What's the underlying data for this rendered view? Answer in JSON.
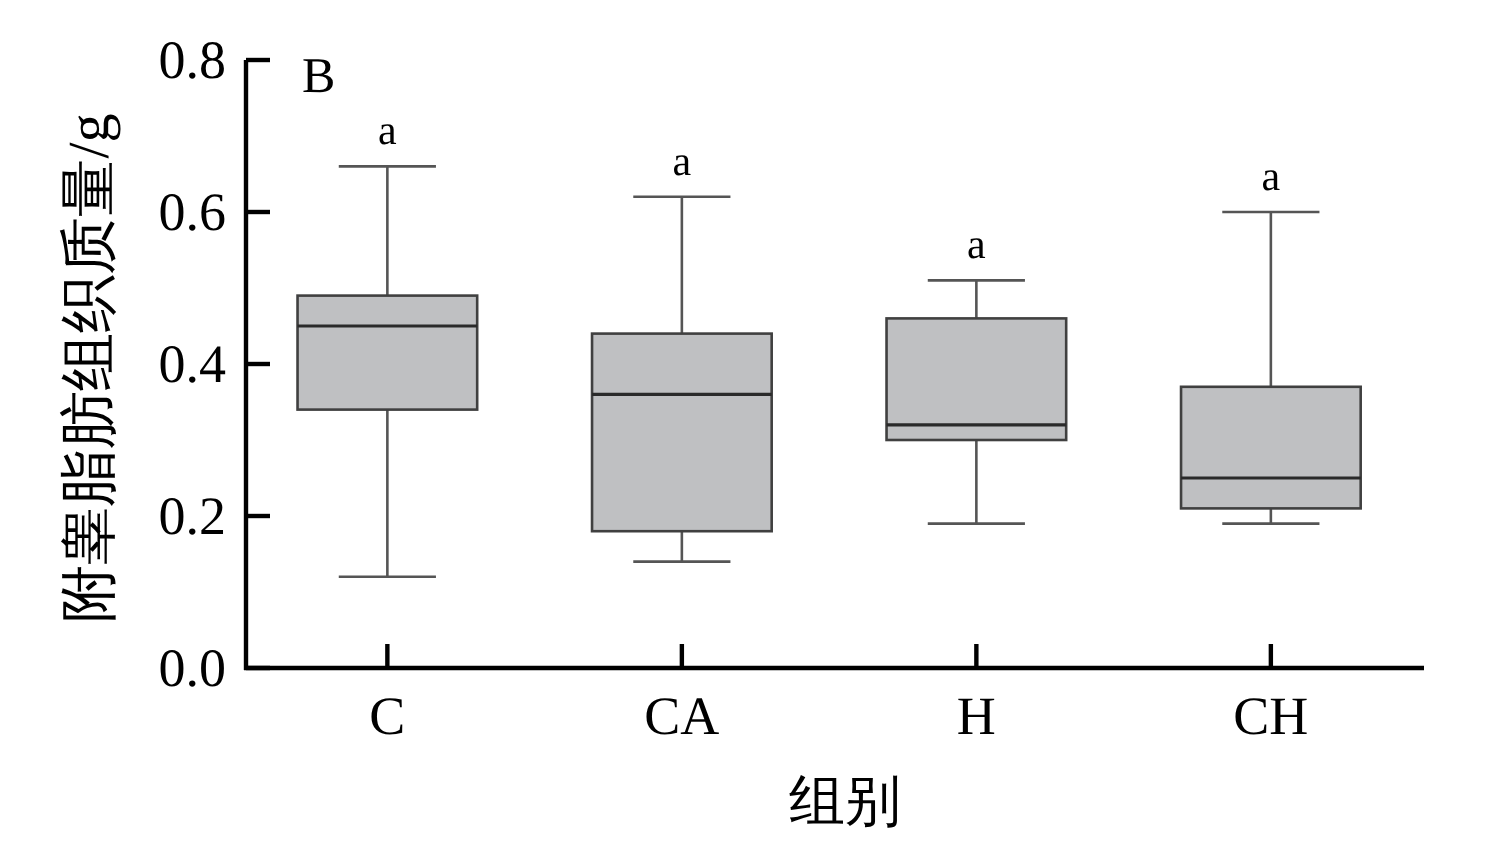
{
  "chart_data": {
    "type": "box",
    "xlabel": "组别",
    "ylabel": "附睾脂肪组织质量/g",
    "categories": [
      "C",
      "CA",
      "H",
      "CH"
    ],
    "series": [
      {
        "color": "#bfc0c2",
        "boxes": [
          {
            "low": 0.12,
            "q1": 0.34,
            "median": 0.45,
            "q3": 0.49,
            "high": 0.66
          },
          {
            "low": 0.14,
            "q1": 0.18,
            "median": 0.36,
            "q3": 0.44,
            "high": 0.62
          },
          {
            "low": 0.19,
            "q1": 0.3,
            "median": 0.32,
            "q3": 0.46,
            "high": 0.51
          },
          {
            "low": 0.19,
            "q1": 0.21,
            "median": 0.25,
            "q3": 0.37,
            "high": 0.6
          }
        ]
      }
    ],
    "ylim": [
      0,
      0.8
    ],
    "yticks": [
      {
        "value": 0,
        "label": "0.0"
      },
      0.2,
      0.4,
      0.6,
      0.8
    ],
    "annotations": [
      "B",
      "a",
      "a",
      "a",
      "a"
    ]
  }
}
